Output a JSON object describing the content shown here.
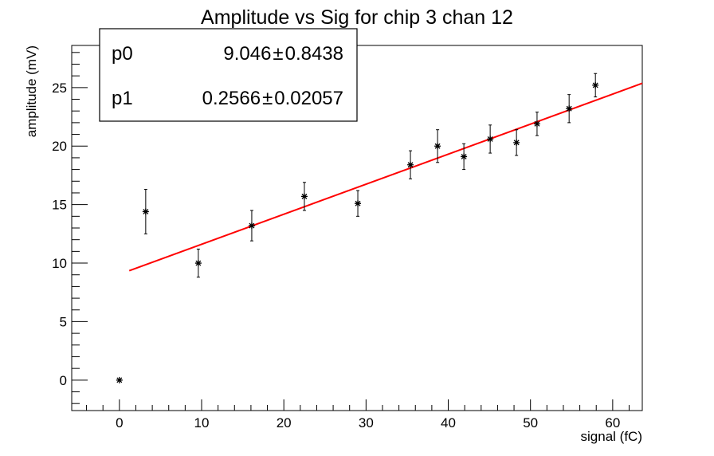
{
  "chart_data": {
    "type": "scatter",
    "title": "Amplitude vs Sig for chip 3 chan 12",
    "xlabel": "signal (fC)",
    "ylabel": "amplitude (mV)",
    "xlim": [
      -5.8,
      63.6
    ],
    "ylim": [
      -2.6,
      28.6
    ],
    "xticks": [
      0,
      10,
      20,
      30,
      40,
      50,
      60
    ],
    "yticks": [
      0,
      5,
      10,
      15,
      20,
      25
    ],
    "grid": false,
    "points": [
      {
        "x": 0.0,
        "y": 0.0,
        "err": 0.0
      },
      {
        "x": 3.2,
        "y": 14.4,
        "err": 1.9
      },
      {
        "x": 9.6,
        "y": 10.0,
        "err": 1.2
      },
      {
        "x": 16.1,
        "y": 13.2,
        "err": 1.3
      },
      {
        "x": 22.5,
        "y": 15.7,
        "err": 1.2
      },
      {
        "x": 29.0,
        "y": 15.1,
        "err": 1.1
      },
      {
        "x": 35.4,
        "y": 18.4,
        "err": 1.2
      },
      {
        "x": 38.7,
        "y": 20.0,
        "err": 1.4
      },
      {
        "x": 41.9,
        "y": 19.1,
        "err": 1.1
      },
      {
        "x": 45.1,
        "y": 20.6,
        "err": 1.2
      },
      {
        "x": 48.3,
        "y": 20.3,
        "err": 1.1
      },
      {
        "x": 50.8,
        "y": 21.9,
        "err": 1.0
      },
      {
        "x": 54.7,
        "y": 23.2,
        "err": 1.2
      },
      {
        "x": 57.9,
        "y": 25.2,
        "err": 1.0
      }
    ],
    "fit": {
      "color": "#ff0000",
      "x_range": [
        1.2,
        63.6
      ],
      "p0": 9.046,
      "p1": 0.2566
    },
    "stats": [
      {
        "key": "p0",
        "value": "9.046",
        "error": "0.8438"
      },
      {
        "key": "p1",
        "value": "0.2566",
        "error": "0.02057"
      }
    ],
    "stats_separator": "±"
  }
}
